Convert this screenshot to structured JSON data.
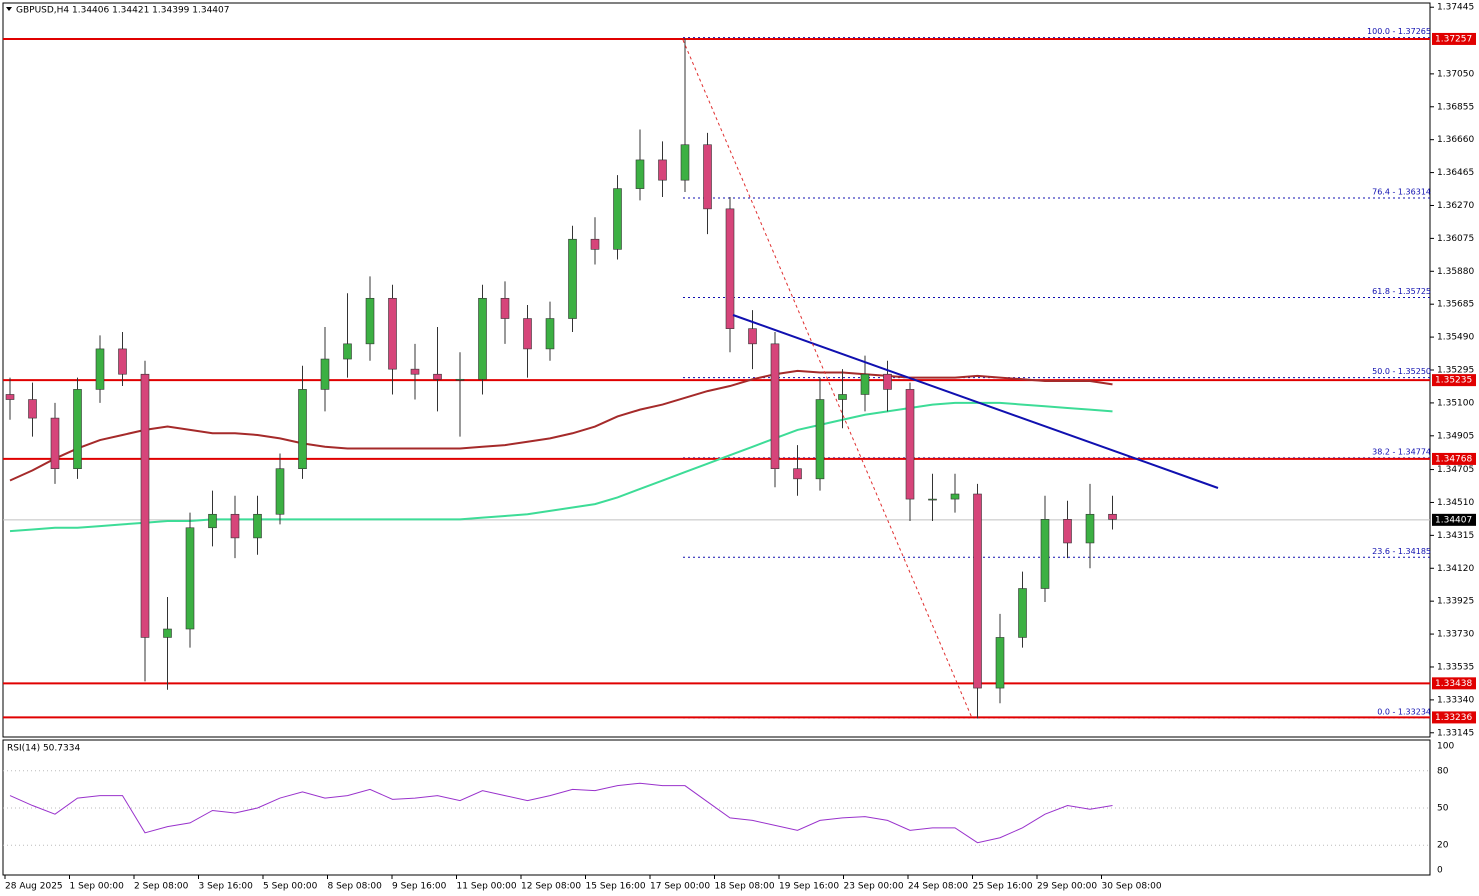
{
  "chart_data": {
    "type": "candlestick",
    "title": "GBPUSD,H4  1.34406 1.34421 1.34399 1.34407",
    "ylim": [
      1.3312,
      1.3747
    ],
    "yticks": [
      1.37445,
      {
        "value": 1.3705,
        "label": "1.37050"
      },
      1.36855,
      {
        "value": 1.3666,
        "label": "1.36660"
      },
      1.36465,
      {
        "value": 1.3627,
        "label": "1.36270"
      },
      1.36075,
      {
        "value": 1.3588,
        "label": "1.35880"
      },
      1.35685,
      {
        "value": 1.3549,
        "label": "1.35490"
      },
      1.35295,
      {
        "value": 1.351,
        "label": "1.35100"
      },
      1.34905,
      1.34705,
      {
        "value": 1.3451,
        "label": "1.34510"
      },
      1.34315,
      {
        "value": 1.3412,
        "label": "1.34120"
      },
      1.33925,
      {
        "value": 1.3373,
        "label": "1.33730"
      },
      1.33535,
      {
        "value": 1.3334,
        "label": "1.33340"
      },
      1.33145
    ],
    "x_labels": [
      "28 Aug 2025",
      "1 Sep 00:00",
      "2 Sep 08:00",
      "3 Sep 16:00",
      "5 Sep 00:00",
      "8 Sep 08:00",
      "9 Sep 16:00",
      "11 Sep 00:00",
      "12 Sep 08:00",
      "15 Sep 16:00",
      "17 Sep 00:00",
      "18 Sep 08:00",
      "19 Sep 16:00",
      "23 Sep 00:00",
      "24 Sep 08:00",
      "25 Sep 16:00",
      "29 Sep 00:00",
      "30 Sep 08:00"
    ],
    "up_color": "#3cb043",
    "down_color": "#d6457a",
    "open": [
      1.3515,
      1.3512,
      1.3501,
      1.3471,
      1.3518,
      1.3542,
      1.3527,
      1.3371,
      1.3376,
      1.3436,
      1.3444,
      1.343,
      1.3444,
      1.3471,
      1.3518,
      1.3536,
      1.3545,
      1.3572,
      1.353,
      1.3527,
      1.3524,
      1.3524,
      1.3572,
      1.356,
      1.3542,
      1.356,
      1.3607,
      1.3601,
      1.3637,
      1.3654,
      1.3642,
      1.3663,
      1.3625,
      1.3554,
      1.3545,
      1.3471,
      1.3465,
      1.3512,
      1.3515,
      1.3527,
      1.3518,
      1.3453,
      1.3453,
      1.3456,
      1.3341,
      1.3371,
      1.34,
      1.3441,
      1.3427,
      1.3444
    ],
    "high": [
      1.3525,
      1.3522,
      1.351,
      1.3525,
      1.355,
      1.3552,
      1.3535,
      1.3395,
      1.3445,
      1.3458,
      1.3455,
      1.3455,
      1.348,
      1.3532,
      1.3555,
      1.3575,
      1.3585,
      1.358,
      1.3545,
      1.3555,
      1.354,
      1.358,
      1.3582,
      1.3568,
      1.357,
      1.3615,
      1.362,
      1.3645,
      1.3672,
      1.3665,
      1.3726,
      1.367,
      1.3632,
      1.3565,
      1.3552,
      1.3485,
      1.3525,
      1.353,
      1.3538,
      1.3535,
      1.3522,
      1.3468,
      1.3468,
      1.3462,
      1.3385,
      1.341,
      1.3455,
      1.3452,
      1.3462,
      1.3455
    ],
    "low": [
      1.35,
      1.349,
      1.3462,
      1.3465,
      1.351,
      1.352,
      1.3345,
      1.334,
      1.3365,
      1.3425,
      1.3418,
      1.342,
      1.3438,
      1.3465,
      1.3505,
      1.3525,
      1.3535,
      1.3515,
      1.3512,
      1.3505,
      1.349,
      1.3515,
      1.3545,
      1.3525,
      1.3535,
      1.3552,
      1.3592,
      1.3595,
      1.363,
      1.3632,
      1.3635,
      1.361,
      1.354,
      1.353,
      1.346,
      1.3455,
      1.3458,
      1.3495,
      1.3505,
      1.3505,
      1.344,
      1.344,
      1.3445,
      1.3323,
      1.3332,
      1.3365,
      1.3392,
      1.3418,
      1.3412,
      1.3435
    ],
    "close": [
      1.3512,
      1.3501,
      1.3471,
      1.3518,
      1.3542,
      1.3527,
      1.3371,
      1.3376,
      1.3436,
      1.3444,
      1.343,
      1.3444,
      1.3471,
      1.3518,
      1.3536,
      1.3545,
      1.3572,
      1.353,
      1.3527,
      1.3524,
      1.3524,
      1.3572,
      1.356,
      1.3542,
      1.356,
      1.3607,
      1.3601,
      1.3637,
      1.3654,
      1.3642,
      1.3663,
      1.3625,
      1.3554,
      1.3545,
      1.3471,
      1.3465,
      1.3512,
      1.3515,
      1.3527,
      1.3518,
      1.3453,
      1.3453,
      1.3456,
      1.3341,
      1.3371,
      1.34,
      1.3441,
      1.3427,
      1.3444,
      1.3441
    ],
    "series": [
      {
        "color": "#a52a2a",
        "values": [
          1.3464,
          1.347,
          1.3477,
          1.3483,
          1.3488,
          1.3491,
          1.3494,
          1.3496,
          1.3494,
          1.3492,
          1.3492,
          1.3491,
          1.3489,
          1.3486,
          1.3484,
          1.3483,
          1.3483,
          1.3483,
          1.3483,
          1.3483,
          1.3483,
          1.3484,
          1.3485,
          1.3487,
          1.3489,
          1.3492,
          1.3496,
          1.3502,
          1.3506,
          1.3509,
          1.3513,
          1.3517,
          1.352,
          1.3524,
          1.3527,
          1.3529,
          1.3528,
          1.3528,
          1.3527,
          1.3526,
          1.3525,
          1.3525,
          1.3525,
          1.3526,
          1.3525,
          1.3524,
          1.3523,
          1.3523,
          1.3523,
          1.3521
        ]
      },
      {
        "color": "#3ddc97",
        "values": [
          1.3434,
          1.3435,
          1.3436,
          1.3436,
          1.3437,
          1.3438,
          1.3439,
          1.344,
          1.344,
          1.3441,
          1.3441,
          1.3441,
          1.3441,
          1.3441,
          1.3441,
          1.3441,
          1.3441,
          1.3441,
          1.3441,
          1.3441,
          1.3441,
          1.3442,
          1.3443,
          1.3444,
          1.3446,
          1.3448,
          1.345,
          1.3454,
          1.3459,
          1.3464,
          1.3469,
          1.3474,
          1.3479,
          1.3484,
          1.3489,
          1.3494,
          1.3497,
          1.35,
          1.3503,
          1.3505,
          1.3507,
          1.3509,
          1.351,
          1.351,
          1.351,
          1.3509,
          1.3508,
          1.3507,
          1.3506,
          1.3505
        ]
      }
    ],
    "levels": [
      1.37257,
      1.35235,
      1.34768,
      1.33438,
      1.33236
    ],
    "level_color": "#e00000",
    "current_price": 1.34407,
    "fib_levels": [
      {
        "value": 1.37265,
        "label": "100.0 - 1.37265"
      },
      {
        "value": 1.36314,
        "label": "76.4 - 1.36314"
      },
      {
        "value": 1.35725,
        "label": "61.8 - 1.35725"
      },
      {
        "value": 1.3525,
        "label": "50.0 - 1.35250"
      },
      {
        "value": 1.34774,
        "label": "38.2 - 1.34774"
      },
      {
        "value": 1.34185,
        "label": "23.6 - 1.34185"
      },
      {
        "value": 1.33234,
        "label": "0.0 - 1.33234"
      }
    ],
    "rsi": {
      "title": "RSI(14) 50.7334",
      "color": "#9932cc",
      "ylim": [
        0,
        100
      ],
      "yticks": [
        100,
        80,
        50,
        20,
        0
      ],
      "values": [
        60,
        52,
        45,
        58,
        60,
        60,
        30,
        35,
        38,
        48,
        46,
        50,
        58,
        63,
        58,
        60,
        65,
        57,
        58,
        60,
        56,
        64,
        60,
        56,
        60,
        65,
        64,
        68,
        70,
        68,
        68,
        55,
        42,
        40,
        36,
        32,
        40,
        42,
        43,
        40,
        32,
        34,
        34,
        22,
        26,
        34,
        45,
        52,
        49,
        52
      ]
    }
  }
}
